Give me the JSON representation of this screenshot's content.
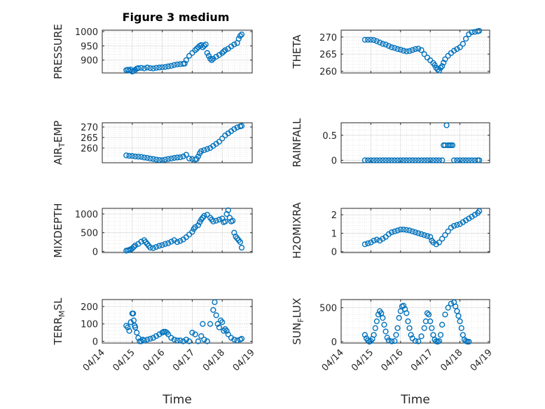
{
  "figure_title": "Figure 3 medium",
  "marker_color": "#0072bd",
  "chart_data": [
    {
      "type": "scatter",
      "title": "Figure 3 medium",
      "ylabel": "PRESSURE",
      "xlabel": "",
      "xlim": [
        0,
        5
      ],
      "ylim": [
        855,
        1005
      ],
      "yticks": [
        900,
        950,
        1000
      ],
      "x": [
        0.8,
        0.85,
        0.9,
        0.95,
        1.0,
        1.05,
        1.1,
        1.15,
        1.2,
        1.3,
        1.4,
        1.5,
        1.6,
        1.7,
        1.8,
        1.9,
        2.0,
        2.1,
        2.2,
        2.3,
        2.4,
        2.5,
        2.6,
        2.7,
        2.75,
        2.8,
        2.9,
        3.0,
        3.1,
        3.15,
        3.2,
        3.25,
        3.3,
        3.35,
        3.4,
        3.45,
        3.5,
        3.55,
        3.6,
        3.65,
        3.7,
        3.8,
        3.9,
        4.0,
        4.05,
        4.1,
        4.2,
        4.3,
        4.4,
        4.5,
        4.55,
        4.6,
        4.65
      ],
      "y": [
        865,
        866,
        864,
        867,
        860,
        862,
        866,
        870,
        872,
        873,
        871,
        874,
        872,
        871,
        873,
        874,
        875,
        876,
        878,
        880,
        883,
        885,
        886,
        887,
        888,
        900,
        915,
        925,
        935,
        940,
        945,
        950,
        953,
        945,
        950,
        955,
        925,
        915,
        905,
        900,
        905,
        912,
        918,
        925,
        930,
        935,
        940,
        948,
        955,
        960,
        975,
        985,
        990
      ]
    },
    {
      "type": "scatter",
      "title": "",
      "ylabel": "THETA",
      "xlabel": "",
      "xlim": [
        0,
        5
      ],
      "ylim": [
        259.5,
        272
      ],
      "yticks": [
        260,
        265,
        270
      ],
      "x": [
        0.8,
        0.9,
        1.0,
        1.1,
        1.2,
        1.3,
        1.4,
        1.5,
        1.6,
        1.7,
        1.8,
        1.9,
        2.0,
        2.1,
        2.2,
        2.3,
        2.4,
        2.5,
        2.6,
        2.7,
        2.8,
        2.9,
        3.0,
        3.1,
        3.15,
        3.2,
        3.25,
        3.3,
        3.35,
        3.4,
        3.45,
        3.5,
        3.6,
        3.7,
        3.8,
        3.9,
        4.0,
        4.1,
        4.2,
        4.3,
        4.4,
        4.5,
        4.6,
        4.65
      ],
      "y": [
        269.2,
        269.2,
        269.2,
        269.1,
        268.8,
        268.4,
        268.0,
        267.8,
        267.4,
        267.0,
        266.8,
        266.5,
        266.3,
        266.0,
        265.8,
        265.9,
        266.2,
        266.5,
        266.6,
        266.2,
        265.0,
        264.0,
        263.2,
        262.4,
        261.8,
        261.0,
        260.5,
        260.2,
        261.0,
        261.5,
        262.5,
        263.5,
        264.5,
        265.3,
        266.0,
        266.5,
        267.0,
        268.0,
        269.5,
        270.8,
        271.4,
        271.5,
        271.7,
        271.8
      ]
    },
    {
      "type": "scatter",
      "title": "",
      "ylabel": "AIR_TEMP",
      "ylabel_parts": {
        "pre": "AIR",
        "sub": "T",
        "post": "EMP"
      },
      "xlabel": "",
      "xlim": [
        0,
        5
      ],
      "ylim": [
        253,
        272
      ],
      "yticks": [
        260,
        265,
        270
      ],
      "x": [
        0.8,
        0.9,
        1.0,
        1.1,
        1.2,
        1.3,
        1.4,
        1.5,
        1.6,
        1.7,
        1.8,
        1.9,
        2.0,
        2.1,
        2.2,
        2.3,
        2.4,
        2.5,
        2.6,
        2.7,
        2.8,
        2.9,
        3.0,
        3.1,
        3.15,
        3.2,
        3.25,
        3.3,
        3.4,
        3.5,
        3.6,
        3.7,
        3.8,
        3.9,
        4.0,
        4.1,
        4.2,
        4.3,
        4.4,
        4.5,
        4.6,
        4.65
      ],
      "y": [
        256.5,
        256.3,
        256.2,
        256.0,
        255.9,
        255.8,
        255.5,
        255.3,
        255.0,
        254.8,
        254.5,
        254.3,
        254.2,
        254.5,
        254.8,
        255.0,
        255.3,
        255.5,
        255.6,
        256.0,
        256.8,
        255.0,
        254.8,
        254.5,
        254.8,
        256.0,
        257.5,
        258.5,
        259.0,
        259.5,
        260.0,
        261.0,
        262.0,
        263.0,
        264.5,
        266.0,
        267.0,
        268.0,
        269.0,
        269.8,
        270.3,
        270.5
      ]
    },
    {
      "type": "scatter",
      "title": "",
      "ylabel": "RAINFALL",
      "xlabel": "",
      "xlim": [
        0,
        5
      ],
      "ylim": [
        -0.05,
        0.75
      ],
      "yticks": [
        0,
        0.5
      ],
      "x": [
        0.8,
        0.9,
        1.0,
        1.1,
        1.2,
        1.3,
        1.4,
        1.5,
        1.6,
        1.7,
        1.8,
        1.9,
        2.0,
        2.1,
        2.2,
        2.3,
        2.4,
        2.5,
        2.6,
        2.7,
        2.8,
        2.9,
        3.0,
        3.1,
        3.2,
        3.3,
        3.4,
        3.45,
        3.5,
        3.55,
        3.6,
        3.65,
        3.7,
        3.75,
        3.8,
        3.9,
        4.0,
        4.1,
        4.2,
        4.3,
        4.4,
        4.5,
        4.6,
        4.65
      ],
      "y": [
        0,
        0,
        0,
        0,
        0,
        0,
        0,
        0,
        0,
        0,
        0,
        0,
        0,
        0,
        0,
        0,
        0,
        0,
        0,
        0,
        0,
        0,
        0,
        0,
        0,
        0,
        0,
        0.3,
        0.3,
        0.7,
        0.3,
        0.3,
        0.3,
        0.3,
        0,
        0,
        0,
        0,
        0,
        0,
        0,
        0,
        0,
        0
      ]
    },
    {
      "type": "scatter",
      "title": "",
      "ylabel": "MIXDEPTH",
      "xlabel": "",
      "xlim": [
        0,
        5
      ],
      "ylim": [
        -30,
        1150
      ],
      "yticks": [
        0,
        500,
        1000
      ],
      "x": [
        0.8,
        0.85,
        0.9,
        0.95,
        1.0,
        1.05,
        1.1,
        1.2,
        1.3,
        1.4,
        1.45,
        1.5,
        1.55,
        1.6,
        1.7,
        1.8,
        1.9,
        2.0,
        2.1,
        2.2,
        2.3,
        2.4,
        2.5,
        2.6,
        2.7,
        2.8,
        2.9,
        3.0,
        3.05,
        3.1,
        3.2,
        3.25,
        3.3,
        3.35,
        3.4,
        3.5,
        3.6,
        3.65,
        3.7,
        3.8,
        3.9,
        4.0,
        4.05,
        4.1,
        4.15,
        4.2,
        4.25,
        4.3,
        4.35,
        4.4,
        4.45,
        4.5,
        4.55,
        4.6,
        4.65
      ],
      "y": [
        20,
        30,
        40,
        60,
        80,
        120,
        160,
        200,
        260,
        300,
        250,
        200,
        150,
        100,
        90,
        120,
        150,
        170,
        200,
        220,
        260,
        300,
        250,
        280,
        320,
        380,
        450,
        520,
        600,
        650,
        700,
        780,
        850,
        900,
        950,
        980,
        900,
        850,
        800,
        820,
        850,
        880,
        780,
        800,
        1000,
        1100,
        900,
        800,
        820,
        500,
        400,
        350,
        300,
        250,
        100
      ]
    },
    {
      "type": "scatter",
      "title": "",
      "ylabel": "H2OMIXRA",
      "xlabel": "",
      "xlim": [
        0,
        5
      ],
      "ylim": [
        -0.05,
        2.35
      ],
      "yticks": [
        0,
        1,
        2
      ],
      "x": [
        0.8,
        0.9,
        1.0,
        1.1,
        1.2,
        1.3,
        1.4,
        1.5,
        1.6,
        1.7,
        1.8,
        1.9,
        2.0,
        2.1,
        2.2,
        2.3,
        2.4,
        2.5,
        2.6,
        2.7,
        2.8,
        2.9,
        3.0,
        3.05,
        3.1,
        3.2,
        3.3,
        3.4,
        3.5,
        3.6,
        3.7,
        3.8,
        3.9,
        4.0,
        4.1,
        4.2,
        4.3,
        4.4,
        4.5,
        4.6,
        4.65
      ],
      "y": [
        0.4,
        0.45,
        0.5,
        0.6,
        0.65,
        0.6,
        0.7,
        0.8,
        0.95,
        1.05,
        1.1,
        1.15,
        1.2,
        1.2,
        1.18,
        1.15,
        1.1,
        1.05,
        1.0,
        0.95,
        0.9,
        0.85,
        0.8,
        0.6,
        0.5,
        0.4,
        0.5,
        0.7,
        0.9,
        1.1,
        1.3,
        1.4,
        1.45,
        1.5,
        1.6,
        1.7,
        1.8,
        1.9,
        2.0,
        2.1,
        2.2
      ]
    },
    {
      "type": "scatter",
      "title": "",
      "ylabel": "TERR_MSL",
      "ylabel_parts": {
        "pre": "TERR",
        "sub": "M",
        "post": "SL"
      },
      "xlabel": "Time",
      "xlim": [
        0,
        5
      ],
      "ylim": [
        -10,
        240
      ],
      "yticks": [
        0,
        100,
        200
      ],
      "xticks": [
        0,
        1,
        2,
        3,
        4,
        5
      ],
      "xticklabels": [
        "04/14",
        "04/15",
        "04/16",
        "04/17",
        "04/18",
        "04/19"
      ],
      "x": [
        0.8,
        0.85,
        0.9,
        0.95,
        1.0,
        1.03,
        1.05,
        1.08,
        1.1,
        1.15,
        1.2,
        1.25,
        1.3,
        1.35,
        1.4,
        1.5,
        1.6,
        1.7,
        1.8,
        1.9,
        2.0,
        2.05,
        2.1,
        2.15,
        2.2,
        2.3,
        2.4,
        2.5,
        2.6,
        2.7,
        2.8,
        2.9,
        3.0,
        3.1,
        3.2,
        3.3,
        3.35,
        3.4,
        3.5,
        3.6,
        3.7,
        3.75,
        3.8,
        3.85,
        3.9,
        3.95,
        4.0,
        4.05,
        4.1,
        4.15,
        4.2,
        4.3,
        4.4,
        4.5,
        4.6,
        4.65
      ],
      "y": [
        90,
        80,
        60,
        110,
        160,
        160,
        120,
        90,
        80,
        50,
        20,
        0,
        0,
        10,
        5,
        10,
        15,
        20,
        30,
        40,
        50,
        55,
        55,
        50,
        40,
        20,
        10,
        5,
        5,
        0,
        10,
        0,
        50,
        40,
        0,
        30,
        100,
        10,
        0,
        100,
        180,
        225,
        150,
        100,
        80,
        120,
        110,
        60,
        70,
        60,
        40,
        20,
        10,
        5,
        10,
        15
      ]
    },
    {
      "type": "scatter",
      "title": "",
      "ylabel": "SUN_FLUX",
      "ylabel_parts": {
        "pre": "SUN",
        "sub": "F",
        "post": "LUX"
      },
      "xlabel": "Time",
      "xlim": [
        0,
        5
      ],
      "ylim": [
        -20,
        620
      ],
      "yticks": [
        0,
        500
      ],
      "xticks": [
        0,
        1,
        2,
        3,
        4,
        5
      ],
      "xticklabels": [
        "04/14",
        "04/15",
        "04/16",
        "04/17",
        "04/18",
        "04/19"
      ],
      "x": [
        0.8,
        0.85,
        0.9,
        0.95,
        1.0,
        1.05,
        1.1,
        1.15,
        1.2,
        1.25,
        1.3,
        1.35,
        1.4,
        1.45,
        1.5,
        1.55,
        1.6,
        1.7,
        1.8,
        1.85,
        1.9,
        1.95,
        2.0,
        2.05,
        2.1,
        2.15,
        2.2,
        2.25,
        2.3,
        2.35,
        2.4,
        2.5,
        2.6,
        2.7,
        2.8,
        2.85,
        2.9,
        2.95,
        3.0,
        3.05,
        3.1,
        3.15,
        3.2,
        3.25,
        3.3,
        3.35,
        3.4,
        3.5,
        3.6,
        3.7,
        3.8,
        3.85,
        3.9,
        3.95,
        4.0,
        4.05,
        4.1,
        4.15,
        4.2,
        4.25,
        4.3
      ],
      "y": [
        100,
        50,
        20,
        0,
        10,
        40,
        100,
        200,
        300,
        400,
        450,
        420,
        350,
        250,
        150,
        60,
        20,
        5,
        10,
        100,
        200,
        350,
        450,
        520,
        530,
        480,
        420,
        300,
        200,
        100,
        50,
        10,
        5,
        80,
        200,
        300,
        420,
        400,
        300,
        200,
        100,
        30,
        5,
        0,
        10,
        100,
        250,
        400,
        500,
        560,
        580,
        520,
        450,
        380,
        300,
        200,
        100,
        30,
        10,
        0,
        0
      ]
    }
  ]
}
